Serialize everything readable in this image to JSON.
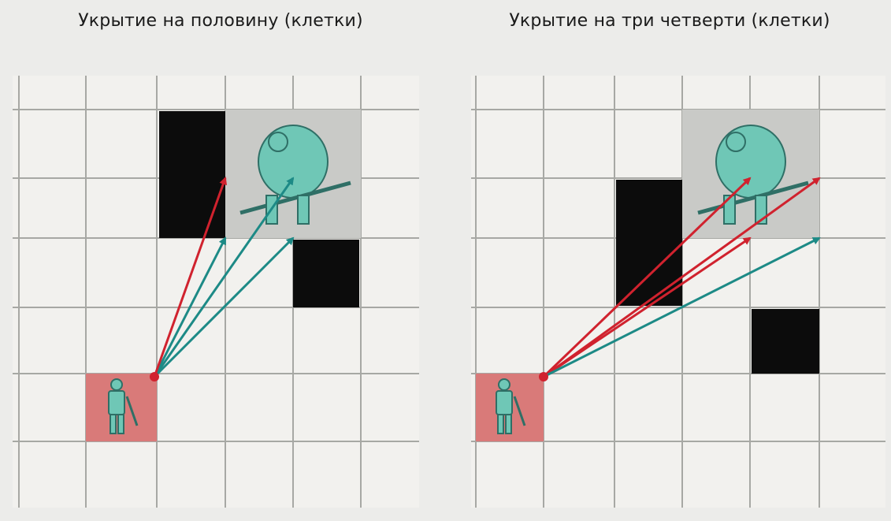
{
  "panels": [
    {
      "title": "Укрытие на половину (клетки)",
      "attacker_cell": [
        1,
        4
      ],
      "target_cells": [
        [
          3,
          0
        ],
        [
          4,
          0
        ],
        [
          3,
          1
        ],
        [
          4,
          1
        ]
      ],
      "blocked_cells": [
        [
          2,
          0
        ],
        [
          2,
          1
        ],
        [
          4,
          2
        ]
      ],
      "origin": "top-right corner of attacker square",
      "lines": [
        {
          "to": "bottom-left corner of cell [3,1]",
          "color": "red"
        },
        {
          "to": "bottom-left corner of cell [4,1]",
          "color": "teal"
        },
        {
          "to": "bottom-right corner of cell [4,1]",
          "color": "teal"
        },
        {
          "to": "top-right corner of cell [2,1]",
          "color": "teal"
        }
      ]
    },
    {
      "title": "Укрытие на три четверти (клетки)",
      "attacker_cell": [
        1,
        4
      ],
      "target_cells": [
        [
          3,
          0
        ],
        [
          4,
          0
        ],
        [
          3,
          1
        ],
        [
          4,
          1
        ]
      ],
      "blocked_cells": [
        [
          2,
          1
        ],
        [
          2,
          2
        ],
        [
          4,
          3
        ]
      ],
      "origin": "top-right corner of attacker square",
      "lines": [
        {
          "to": "top-right corner of cell [3,1]",
          "color": "red"
        },
        {
          "to": "top-right corner of cell [4,1]",
          "color": "red"
        },
        {
          "to": "bottom-right corner of cell [3,1]",
          "color": "red"
        },
        {
          "to": "bottom-right corner of cell [4,1]",
          "color": "teal"
        }
      ]
    }
  ],
  "colors": {
    "background": "#ececea",
    "floor": "#f2f1ee",
    "grid_line": "#a7a8a4",
    "blocked": "#0c0c0c",
    "target_shade": "#c9cac7",
    "attacker_shade": "#d97a79",
    "red_arrow": "#d0222e",
    "teal_arrow": "#1d8a86",
    "creature": "#6fc7b6"
  },
  "icons": {
    "attacker": "armored-warrior-icon",
    "target": "ogre-creature-icon"
  }
}
